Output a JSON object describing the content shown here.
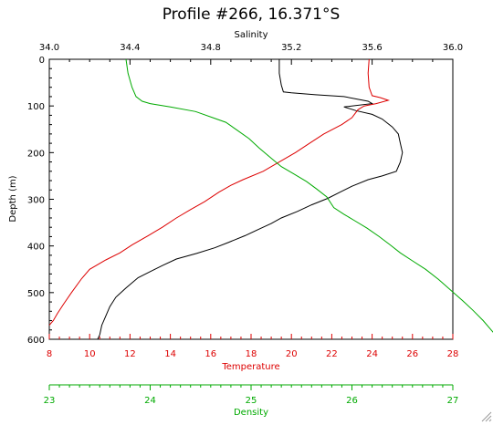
{
  "chart_data": {
    "type": "line",
    "title": "Profile #266, 16.371°S",
    "ylabel": "Depth (m)",
    "ylim": [
      0,
      600
    ],
    "y_ticks": [
      "0",
      "100",
      "200",
      "300",
      "400",
      "500",
      "600"
    ],
    "axes": {
      "salinity": {
        "label": "Salinity",
        "range": [
          34.0,
          36.0
        ],
        "ticks": [
          "34.0",
          "34.4",
          "34.8",
          "35.2",
          "35.6",
          "36.0"
        ],
        "position": "top",
        "color": "#000000"
      },
      "temperature": {
        "label": "Temperature",
        "range": [
          8,
          28
        ],
        "ticks": [
          "8",
          "10",
          "12",
          "14",
          "16",
          "18",
          "20",
          "22",
          "24",
          "26",
          "28"
        ],
        "position": "bottom",
        "color": "#dd0000"
      },
      "density": {
        "label": "Density",
        "range": [
          23,
          27
        ],
        "ticks": [
          "23",
          "24",
          "25",
          "26",
          "27"
        ],
        "position": "bottom-detached",
        "color": "#00aa00"
      }
    },
    "series": [
      {
        "axis": "salinity",
        "color": "#000000",
        "points": [
          [
            35.14,
            0
          ],
          [
            35.14,
            30
          ],
          [
            35.15,
            55
          ],
          [
            35.16,
            70
          ],
          [
            35.2,
            72
          ],
          [
            35.32,
            76
          ],
          [
            35.46,
            80
          ],
          [
            35.58,
            90
          ],
          [
            35.6,
            95
          ],
          [
            35.46,
            102
          ],
          [
            35.52,
            110
          ],
          [
            35.6,
            118
          ],
          [
            35.65,
            128
          ],
          [
            35.7,
            145
          ],
          [
            35.73,
            160
          ],
          [
            35.74,
            180
          ],
          [
            35.75,
            200
          ],
          [
            35.74,
            220
          ],
          [
            35.72,
            240
          ],
          [
            35.65,
            250
          ],
          [
            35.58,
            258
          ],
          [
            35.5,
            272
          ],
          [
            35.44,
            285
          ],
          [
            35.38,
            298
          ],
          [
            35.3,
            312
          ],
          [
            35.23,
            326
          ],
          [
            35.15,
            340
          ],
          [
            35.1,
            352
          ],
          [
            35.04,
            364
          ],
          [
            34.97,
            378
          ],
          [
            34.89,
            392
          ],
          [
            34.82,
            404
          ],
          [
            34.73,
            416
          ],
          [
            34.63,
            428
          ],
          [
            34.56,
            442
          ],
          [
            34.5,
            455
          ],
          [
            34.44,
            468
          ],
          [
            34.38,
            490
          ],
          [
            34.33,
            510
          ],
          [
            34.3,
            530
          ],
          [
            34.28,
            550
          ],
          [
            34.26,
            570
          ],
          [
            34.25,
            590
          ],
          [
            34.24,
            600
          ]
        ]
      },
      {
        "axis": "temperature",
        "color": "#dd0000",
        "points": [
          [
            23.85,
            0
          ],
          [
            23.8,
            30
          ],
          [
            23.85,
            60
          ],
          [
            24.0,
            78
          ],
          [
            24.4,
            82
          ],
          [
            24.8,
            88
          ],
          [
            24.2,
            95
          ],
          [
            23.6,
            100
          ],
          [
            23.3,
            108
          ],
          [
            23.0,
            125
          ],
          [
            22.5,
            140
          ],
          [
            21.6,
            160
          ],
          [
            20.9,
            180
          ],
          [
            20.2,
            200
          ],
          [
            19.4,
            220
          ],
          [
            18.6,
            240
          ],
          [
            17.6,
            258
          ],
          [
            17.0,
            270
          ],
          [
            16.4,
            285
          ],
          [
            15.7,
            305
          ],
          [
            15.0,
            322
          ],
          [
            14.3,
            340
          ],
          [
            13.6,
            360
          ],
          [
            12.9,
            378
          ],
          [
            12.1,
            398
          ],
          [
            11.5,
            415
          ],
          [
            10.8,
            430
          ],
          [
            10.0,
            450
          ],
          [
            9.6,
            470
          ],
          [
            9.1,
            500
          ],
          [
            8.7,
            525
          ],
          [
            8.4,
            545
          ],
          [
            8.2,
            560
          ],
          [
            8.0,
            570
          ]
        ]
      },
      {
        "axis": "density",
        "color": "#00aa00",
        "points": [
          [
            23.76,
            0
          ],
          [
            23.78,
            30
          ],
          [
            23.82,
            60
          ],
          [
            23.86,
            80
          ],
          [
            23.92,
            90
          ],
          [
            24.0,
            95
          ],
          [
            24.2,
            102
          ],
          [
            24.45,
            112
          ],
          [
            24.62,
            125
          ],
          [
            24.75,
            135
          ],
          [
            24.85,
            150
          ],
          [
            24.98,
            170
          ],
          [
            25.08,
            190
          ],
          [
            25.2,
            212
          ],
          [
            25.3,
            230
          ],
          [
            25.42,
            245
          ],
          [
            25.55,
            262
          ],
          [
            25.65,
            278
          ],
          [
            25.75,
            295
          ],
          [
            25.82,
            318
          ],
          [
            25.92,
            332
          ],
          [
            26.02,
            345
          ],
          [
            26.15,
            362
          ],
          [
            26.27,
            380
          ],
          [
            26.38,
            398
          ],
          [
            26.48,
            415
          ],
          [
            26.6,
            432
          ],
          [
            26.73,
            450
          ],
          [
            26.86,
            472
          ],
          [
            26.98,
            495
          ],
          [
            27.1,
            518
          ],
          [
            27.2,
            538
          ],
          [
            27.3,
            560
          ],
          [
            27.38,
            580
          ],
          [
            27.46,
            600
          ]
        ]
      }
    ]
  }
}
